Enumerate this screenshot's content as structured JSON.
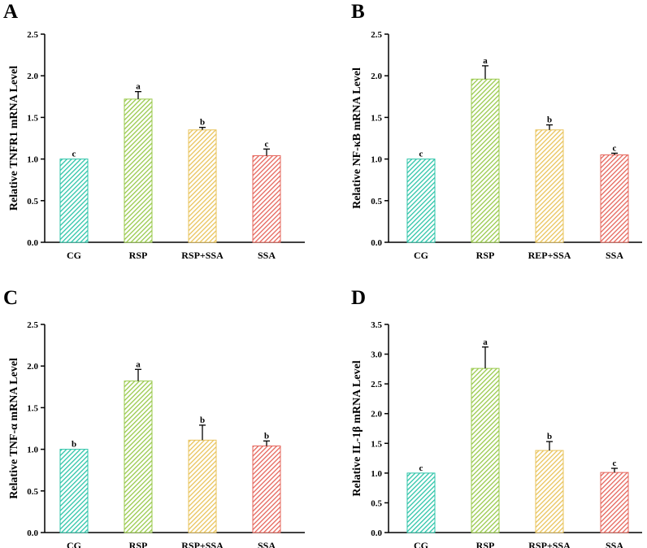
{
  "colors": {
    "CG": "#2cc4a8",
    "RSP": "#98c94a",
    "RSP+SSA": "#e9c35a",
    "SSA": "#e5645a"
  },
  "chart_data": [
    {
      "panel": "A",
      "type": "bar",
      "ylabel": "Relative TNFR1 mRNA Level",
      "categories": [
        "CG",
        "RSP",
        "RSP+SSA",
        "SSA"
      ],
      "values": [
        1.0,
        1.72,
        1.35,
        1.04
      ],
      "errors": [
        0.0,
        0.09,
        0.03,
        0.08
      ],
      "letters": [
        "c",
        "a",
        "b",
        "c"
      ],
      "ylim": [
        0,
        2.5
      ],
      "yticks": [
        "0.0",
        "0.5",
        "1.0",
        "1.5",
        "2.0",
        "2.5"
      ]
    },
    {
      "panel": "B",
      "type": "bar",
      "ylabel": "Relative NF-κB mRNA Level",
      "categories": [
        "CG",
        "RSP",
        "REP+SSA",
        "SSA"
      ],
      "values": [
        1.0,
        1.96,
        1.35,
        1.05
      ],
      "errors": [
        0.0,
        0.16,
        0.06,
        0.02
      ],
      "letters": [
        "c",
        "a",
        "b",
        "c"
      ],
      "ylim": [
        0,
        2.5
      ],
      "yticks": [
        "0.0",
        "0.5",
        "1.0",
        "1.5",
        "2.0",
        "2.5"
      ]
    },
    {
      "panel": "C",
      "type": "bar",
      "ylabel": "Relative TNF-α mRNA Level",
      "categories": [
        "CG",
        "RSP",
        "RSP+SSA",
        "SSA"
      ],
      "values": [
        1.0,
        1.82,
        1.11,
        1.04
      ],
      "errors": [
        0.0,
        0.14,
        0.18,
        0.06
      ],
      "letters": [
        "b",
        "a",
        "b",
        "b"
      ],
      "ylim": [
        0,
        2.5
      ],
      "yticks": [
        "0.0",
        "0.5",
        "1.0",
        "1.5",
        "2.0",
        "2.5"
      ]
    },
    {
      "panel": "D",
      "type": "bar",
      "ylabel": "Relative IL-1β mRNA Level",
      "categories": [
        "CG",
        "RSP",
        "RSP+SSA",
        "SSA"
      ],
      "values": [
        1.0,
        2.76,
        1.38,
        1.01
      ],
      "errors": [
        0.0,
        0.36,
        0.15,
        0.07
      ],
      "letters": [
        "c",
        "a",
        "b",
        "c"
      ],
      "ylim": [
        0,
        3.5
      ],
      "yticks": [
        "0.0",
        "0.5",
        "1.0",
        "1.5",
        "2.0",
        "2.5",
        "3.0",
        "3.5"
      ]
    }
  ]
}
